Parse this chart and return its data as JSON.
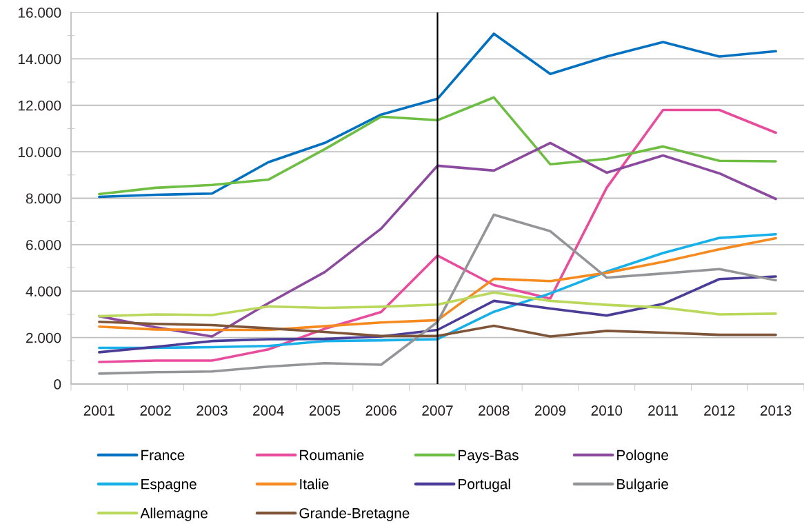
{
  "chart_data": {
    "type": "line",
    "categories": [
      "2001",
      "2002",
      "2003",
      "2004",
      "2005",
      "2006",
      "2007",
      "2008",
      "2009",
      "2010",
      "2011",
      "2012",
      "2013"
    ],
    "series": [
      {
        "name": "France",
        "color": "#0070c0",
        "values": [
          8060,
          8150,
          8200,
          9550,
          10380,
          11600,
          12280,
          15080,
          13350,
          14100,
          14720,
          14100,
          14330
        ]
      },
      {
        "name": "Roumanie",
        "color": "#e84c9c",
        "values": [
          950,
          1010,
          1010,
          1490,
          2380,
          3100,
          5530,
          4260,
          3680,
          8450,
          11800,
          11800,
          10820
        ]
      },
      {
        "name": "Pays-Bas",
        "color": "#6ebe44",
        "values": [
          8180,
          8450,
          8570,
          8800,
          10110,
          11510,
          11360,
          12340,
          9460,
          9690,
          10230,
          9610,
          9590
        ]
      },
      {
        "name": "Pologne",
        "color": "#8b4a9e",
        "values": [
          2920,
          2440,
          2050,
          3480,
          4820,
          6690,
          9400,
          9190,
          10380,
          9100,
          9840,
          9070,
          7970
        ]
      },
      {
        "name": "Espagne",
        "color": "#17b0e8",
        "values": [
          1560,
          1560,
          1590,
          1640,
          1850,
          1880,
          1930,
          3110,
          3900,
          4840,
          5640,
          6290,
          6450
        ]
      },
      {
        "name": "Italie",
        "color": "#f58a20",
        "values": [
          2470,
          2350,
          2330,
          2330,
          2490,
          2650,
          2750,
          4530,
          4430,
          4790,
          5260,
          5800,
          6280
        ]
      },
      {
        "name": "Portugal",
        "color": "#4b3c98",
        "values": [
          1370,
          1600,
          1850,
          1930,
          1940,
          2050,
          2330,
          3580,
          3250,
          2950,
          3450,
          4520,
          4630
        ]
      },
      {
        "name": "Bulgarie",
        "color": "#939598",
        "values": [
          450,
          510,
          540,
          750,
          900,
          830,
          2670,
          7290,
          6580,
          4580,
          4760,
          4950,
          4470
        ]
      },
      {
        "name": "Allemagne",
        "color": "#b9d85c",
        "values": [
          2920,
          3000,
          2970,
          3340,
          3280,
          3330,
          3420,
          3940,
          3580,
          3410,
          3290,
          3000,
          3030
        ]
      },
      {
        "name": "Grande-Bretagne",
        "color": "#7f5539",
        "values": [
          2680,
          2590,
          2540,
          2400,
          2240,
          2070,
          2070,
          2510,
          2050,
          2290,
          2210,
          2120,
          2120
        ]
      }
    ],
    "ylim": [
      0,
      16000
    ],
    "yticks": [
      0,
      {
        "value": 1000,
        "label": null
      },
      {
        "value": 2000,
        "label": "2.000"
      },
      {
        "value": 3000,
        "label": null
      },
      {
        "value": 4000,
        "label": "4.000"
      },
      {
        "value": 5000,
        "label": null
      },
      {
        "value": 6000,
        "label": "6.000"
      },
      {
        "value": 7000,
        "label": null
      },
      {
        "value": 8000,
        "label": "8.000"
      },
      {
        "value": 9000,
        "label": null
      },
      {
        "value": 10000,
        "label": "10.000"
      },
      {
        "value": 11000,
        "label": null
      },
      {
        "value": 12000,
        "label": "12.000"
      },
      {
        "value": 13000,
        "label": null
      },
      {
        "value": 14000,
        "label": "14.000"
      },
      {
        "value": 15000,
        "label": null
      },
      {
        "value": 16000,
        "label": "16.000"
      }
    ],
    "grid": "y",
    "legend": "bottom",
    "ref_lines": [
      {
        "axis": "x",
        "value": "2007",
        "color": "#000000"
      }
    ]
  }
}
